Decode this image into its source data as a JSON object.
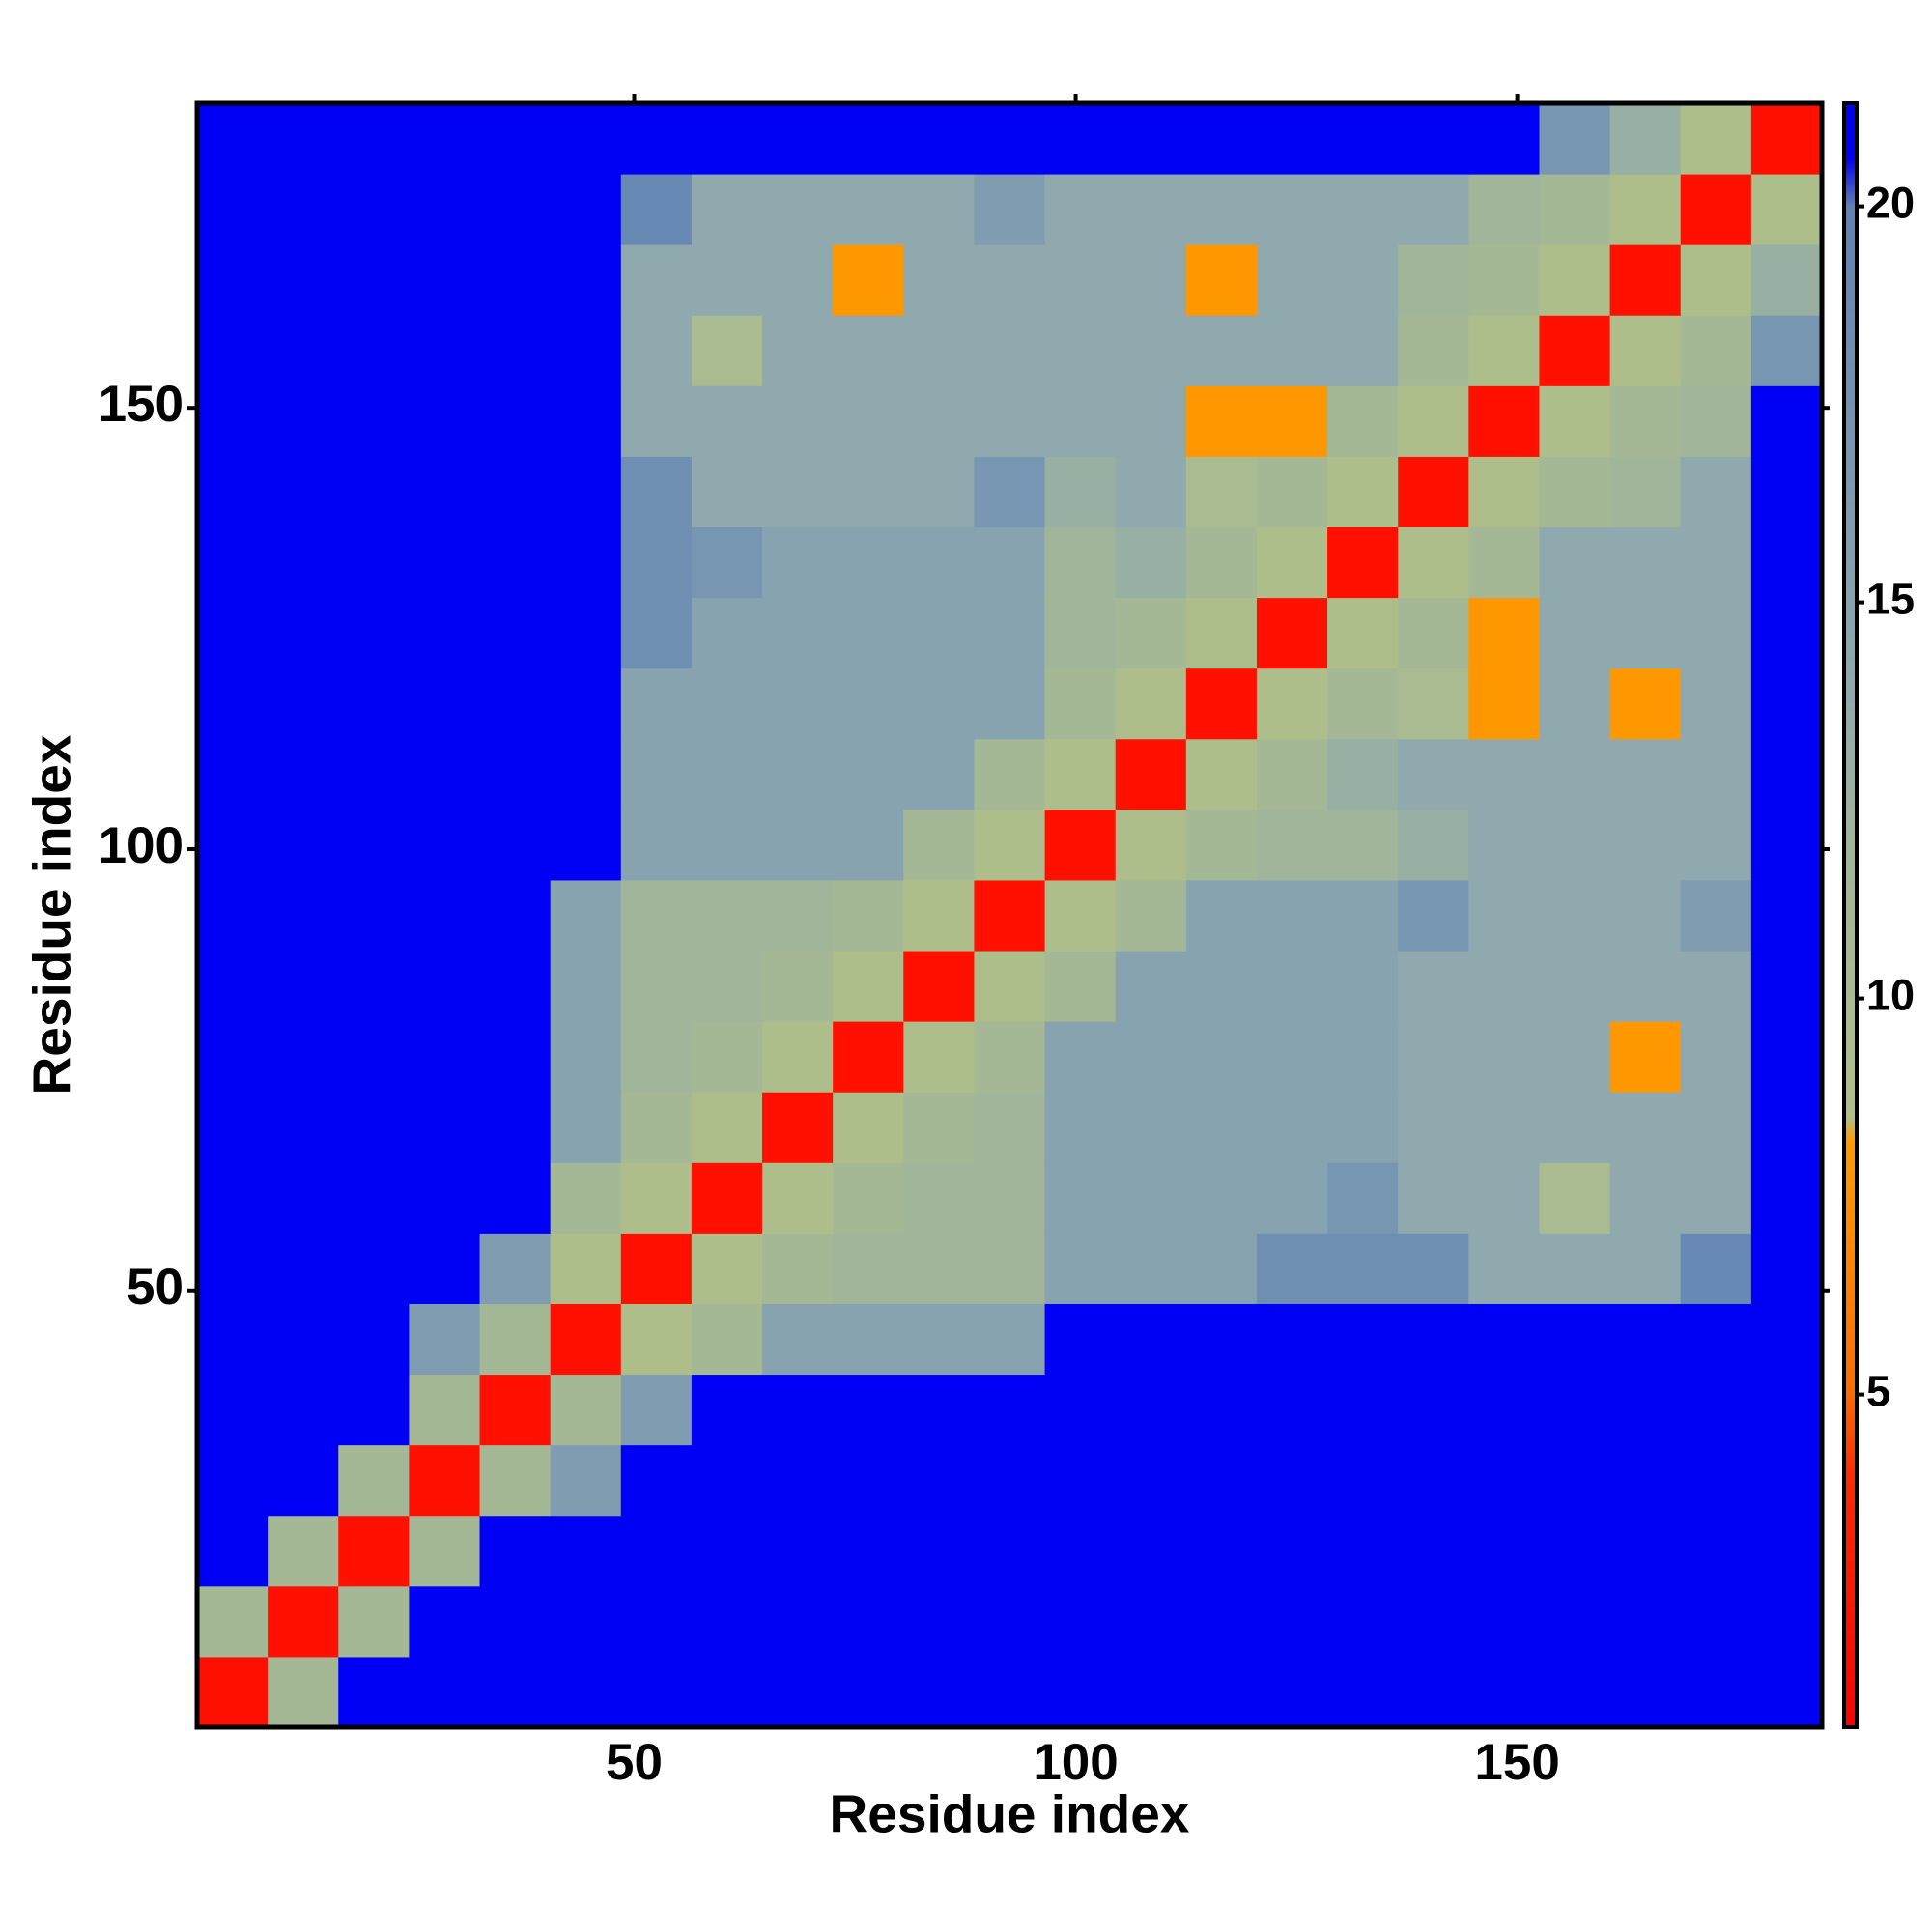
{
  "chart_data": {
    "type": "heatmap",
    "xlabel": "Residue index",
    "ylabel": "Residue index",
    "x_bins": [
      0.5,
      8.5,
      16.5,
      24.5,
      32.5,
      40.5,
      48.5,
      56.5,
      64.5,
      72.5,
      80.5,
      88.5,
      96.5,
      104.5,
      112.5,
      120.5,
      128.5,
      136.5,
      144.5,
      152.5,
      160.5,
      168.5,
      176.5,
      184.5
    ],
    "y_bins": [
      0.5,
      8.5,
      16.5,
      24.5,
      32.5,
      40.5,
      48.5,
      56.5,
      64.5,
      72.5,
      80.5,
      88.5,
      96.5,
      104.5,
      112.5,
      120.5,
      128.5,
      136.5,
      144.5,
      152.5,
      160.5,
      168.5,
      176.5,
      184.5
    ],
    "xlim": [
      0.5,
      184.5
    ],
    "ylim": [
      0.5,
      184.5
    ],
    "xticks": [
      50,
      100,
      150
    ],
    "yticks": [
      50,
      100,
      150
    ],
    "zlim": [
      0.8,
      21.3
    ],
    "zticks": [
      5,
      10,
      15,
      20
    ],
    "colorscale": [
      {
        "value": 0.8,
        "color": "#ff0000"
      },
      {
        "value": 4,
        "color": "#ff2a00"
      },
      {
        "value": 5,
        "color": "#ff6a00"
      },
      {
        "value": 8.2,
        "color": "#ff9a00"
      },
      {
        "value": 8.5,
        "color": "#b0bf88"
      },
      {
        "value": 12,
        "color": "#a0b59a"
      },
      {
        "value": 14,
        "color": "#8fa9ae"
      },
      {
        "value": 20,
        "color": "#5f82b4"
      },
      {
        "value": 20.6,
        "color": "#0000f6"
      },
      {
        "value": 21.3,
        "color": "#0000f6"
      }
    ],
    "z": [
      [
        2,
        11,
        21,
        21,
        21,
        21,
        21,
        21,
        21,
        21,
        21,
        21,
        21,
        21,
        21,
        21,
        21,
        21,
        21,
        21,
        21,
        21,
        21
      ],
      [
        11,
        2,
        11,
        21,
        21,
        21,
        21,
        21,
        21,
        21,
        21,
        21,
        21,
        21,
        21,
        21,
        21,
        21,
        21,
        21,
        21,
        21,
        21
      ],
      [
        21,
        11,
        2,
        11,
        21,
        21,
        21,
        21,
        21,
        21,
        21,
        21,
        21,
        21,
        21,
        21,
        21,
        21,
        21,
        21,
        21,
        21,
        21
      ],
      [
        21,
        21,
        11,
        2,
        11,
        16,
        21,
        21,
        21,
        21,
        21,
        21,
        21,
        21,
        21,
        21,
        21,
        21,
        21,
        21,
        21,
        21,
        21
      ],
      [
        21,
        21,
        21,
        11,
        2,
        11,
        16,
        21,
        21,
        21,
        21,
        21,
        21,
        21,
        21,
        21,
        21,
        21,
        21,
        21,
        21,
        21,
        21
      ],
      [
        21,
        21,
        21,
        16,
        11,
        2,
        9,
        11,
        15,
        15,
        15,
        15,
        21,
        21,
        21,
        21,
        21,
        21,
        21,
        21,
        21,
        21,
        21
      ],
      [
        21,
        21,
        21,
        21,
        16,
        9,
        2,
        9,
        11,
        12,
        12,
        12,
        15,
        15,
        15,
        18,
        18,
        18,
        14,
        14,
        14,
        19,
        21
      ],
      [
        21,
        21,
        21,
        21,
        21,
        11,
        9,
        2,
        9,
        11,
        12,
        12,
        15,
        15,
        15,
        15,
        17,
        14,
        14,
        10,
        14,
        14,
        21
      ],
      [
        21,
        21,
        21,
        21,
        21,
        15,
        11,
        9,
        2,
        9,
        11,
        12,
        15,
        15,
        15,
        15,
        15,
        14,
        14,
        14,
        14,
        14,
        21
      ],
      [
        21,
        21,
        21,
        21,
        21,
        15,
        12,
        11,
        9,
        2,
        9,
        11,
        15,
        15,
        15,
        15,
        15,
        14,
        14,
        14,
        8,
        14,
        21
      ],
      [
        21,
        21,
        21,
        21,
        21,
        15,
        12,
        12,
        11,
        9,
        2,
        9,
        11,
        15,
        15,
        15,
        15,
        14,
        14,
        14,
        14,
        14,
        21
      ],
      [
        21,
        21,
        21,
        21,
        21,
        15,
        12,
        12,
        12,
        11,
        9,
        2,
        9,
        11,
        15,
        15,
        15,
        17,
        14,
        14,
        14,
        16,
        21
      ],
      [
        21,
        21,
        21,
        21,
        21,
        21,
        15,
        15,
        15,
        15,
        11,
        9,
        2,
        9,
        11,
        12,
        12,
        13,
        14,
        14,
        14,
        14,
        21
      ],
      [
        21,
        21,
        21,
        21,
        21,
        21,
        15,
        15,
        15,
        15,
        15,
        11,
        9,
        2,
        9,
        11,
        13,
        14,
        14,
        14,
        14,
        14,
        21
      ],
      [
        21,
        21,
        21,
        21,
        21,
        21,
        15,
        15,
        15,
        15,
        15,
        15,
        11,
        9,
        2,
        9,
        11,
        10,
        8,
        14,
        8,
        14,
        21
      ],
      [
        21,
        21,
        21,
        21,
        21,
        21,
        18,
        15,
        15,
        15,
        15,
        15,
        12,
        11,
        9,
        2,
        9,
        11,
        8,
        14,
        14,
        14,
        21
      ],
      [
        21,
        21,
        21,
        21,
        21,
        21,
        18,
        17,
        15,
        15,
        15,
        15,
        12,
        13,
        11,
        9,
        2,
        9,
        11,
        14,
        14,
        14,
        21
      ],
      [
        21,
        21,
        21,
        21,
        21,
        21,
        18,
        14,
        14,
        14,
        14,
        17,
        13,
        14,
        10,
        11,
        9,
        2,
        9,
        11,
        12,
        14,
        21
      ],
      [
        21,
        21,
        21,
        21,
        21,
        21,
        14,
        14,
        14,
        14,
        14,
        14,
        14,
        14,
        8,
        8,
        11,
        9,
        2,
        9,
        11,
        12,
        21
      ],
      [
        21,
        21,
        21,
        21,
        21,
        21,
        14,
        10,
        14,
        14,
        14,
        14,
        14,
        14,
        14,
        14,
        14,
        11,
        9,
        2,
        9,
        11,
        17
      ],
      [
        21,
        21,
        21,
        21,
        21,
        21,
        14,
        14,
        14,
        8,
        14,
        14,
        14,
        14,
        8,
        14,
        14,
        12,
        11,
        9,
        2,
        9,
        13
      ],
      [
        21,
        21,
        21,
        21,
        21,
        21,
        19,
        14,
        14,
        14,
        14,
        16,
        14,
        14,
        14,
        14,
        14,
        14,
        12,
        11,
        9,
        2,
        9
      ],
      [
        21,
        21,
        21,
        21,
        21,
        21,
        21,
        21,
        21,
        21,
        21,
        21,
        21,
        21,
        21,
        21,
        21,
        21,
        21,
        17,
        13,
        9,
        2
      ]
    ]
  }
}
